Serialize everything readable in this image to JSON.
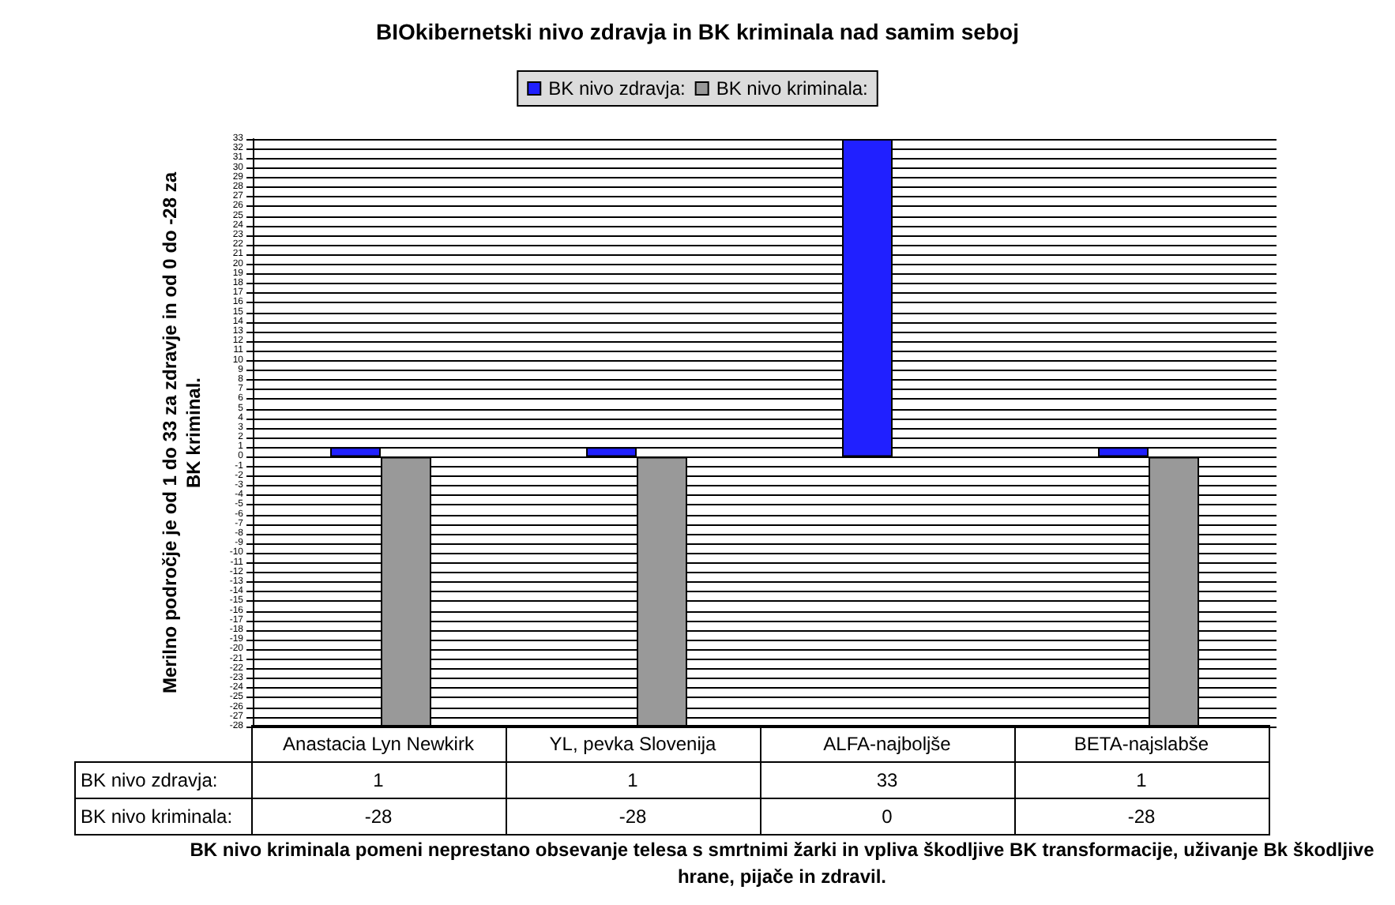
{
  "chart_data": {
    "type": "bar",
    "title": "BIOkibernetski nivo zdravja in BK kriminala nad samim seboj",
    "ylabel": "Merilno področje je od 1 do 33 za zdravje in od 0 do -28 za\nBK kriminal.",
    "categories": [
      "Anastacia Lyn Newkirk",
      "YL, pevka Slovenija",
      "ALFA-najboljše",
      "BETA-najslabše"
    ],
    "series": [
      {
        "name": "BK nivo zdravja:",
        "color": "#2020ff",
        "values": [
          1,
          1,
          33,
          1
        ]
      },
      {
        "name": "BK nivo kriminala:",
        "color": "#999999",
        "values": [
          -28,
          -28,
          0,
          -28
        ]
      }
    ],
    "ylim": [
      -28,
      33
    ],
    "yticks": [
      -28,
      -27,
      -26,
      -25,
      -24,
      -23,
      -22,
      -21,
      -20,
      -19,
      -18,
      -17,
      -16,
      -15,
      -14,
      -13,
      -12,
      -11,
      -10,
      -9,
      -8,
      -7,
      -6,
      -5,
      -4,
      -3,
      -2,
      -1,
      0,
      1,
      2,
      3,
      4,
      5,
      6,
      7,
      8,
      9,
      10,
      11,
      12,
      13,
      14,
      15,
      16,
      17,
      18,
      19,
      20,
      21,
      22,
      23,
      24,
      25,
      26,
      27,
      28,
      29,
      30,
      31,
      32,
      33
    ],
    "grid": true,
    "legend": "top",
    "data_labels": true,
    "annotations": [
      "BK nivo kriminala pomeni neprestano obsevanje telesa s smrtnimi žarki in vpliva škodljive BK transformacije, uživanje Bk škodljive hrane, pijače in zdravil."
    ]
  }
}
